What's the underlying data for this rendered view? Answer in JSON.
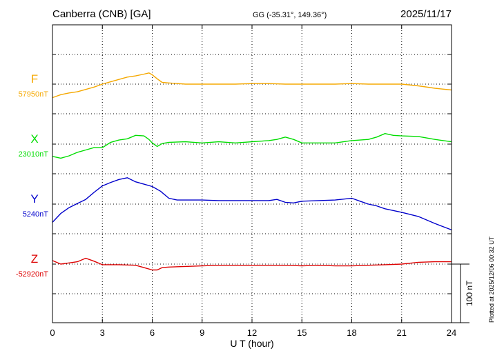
{
  "header": {
    "station": "Canberra (CNB)  [GA]",
    "coordinates": "GG (-35.31°, 149.36°)",
    "date": "2025/11/17"
  },
  "footer": {
    "plotted": "Plotted at 2025/12/06 00:32 UT"
  },
  "chart_data": {
    "type": "line",
    "title": "Canberra (CNB)  [GA]",
    "subtitle": "2025/11/17",
    "xlabel": "U T (hour)",
    "ylabel": "",
    "xlim": [
      0,
      24
    ],
    "x_ticks": [
      0,
      3,
      6,
      9,
      12,
      15,
      18,
      21,
      24
    ],
    "grid": true,
    "scale_bar": {
      "value": 100,
      "unit": "nT",
      "label": "100 nT"
    },
    "series": [
      {
        "name": "F",
        "color": "#f5a800",
        "baseline_label": "57950nT",
        "baseline": 57950,
        "points": [
          [
            0,
            57927
          ],
          [
            0.5,
            57932
          ],
          [
            1,
            57935
          ],
          [
            1.5,
            57937
          ],
          [
            2,
            57941
          ],
          [
            2.5,
            57945
          ],
          [
            3,
            57950
          ],
          [
            3.5,
            57954
          ],
          [
            4,
            57958
          ],
          [
            4.5,
            57962
          ],
          [
            5,
            57964
          ],
          [
            5.5,
            57967
          ],
          [
            5.8,
            57969
          ],
          [
            6,
            57966
          ],
          [
            6.3,
            57959
          ],
          [
            6.6,
            57953
          ],
          [
            7,
            57952
          ],
          [
            8,
            57950
          ],
          [
            9,
            57950
          ],
          [
            10,
            57950
          ],
          [
            11,
            57950
          ],
          [
            12,
            57951
          ],
          [
            13,
            57951
          ],
          [
            14,
            57950
          ],
          [
            15,
            57950
          ],
          [
            16,
            57950
          ],
          [
            17,
            57950
          ],
          [
            18,
            57951
          ],
          [
            19,
            57950
          ],
          [
            20,
            57950
          ],
          [
            21,
            57950
          ],
          [
            22,
            57947
          ],
          [
            23,
            57943
          ],
          [
            24,
            57940
          ]
        ]
      },
      {
        "name": "X",
        "color": "#00dd00",
        "baseline_label": "23010nT",
        "baseline": 23010,
        "points": [
          [
            0,
            22989
          ],
          [
            0.5,
            22986
          ],
          [
            1,
            22990
          ],
          [
            1.5,
            22996
          ],
          [
            2,
            23000
          ],
          [
            2.5,
            23004
          ],
          [
            3,
            23004
          ],
          [
            3.5,
            23013
          ],
          [
            4,
            23017
          ],
          [
            4.5,
            23019
          ],
          [
            5,
            23025
          ],
          [
            5.5,
            23024
          ],
          [
            5.8,
            23018
          ],
          [
            6,
            23012
          ],
          [
            6.3,
            23006
          ],
          [
            6.6,
            23011
          ],
          [
            7,
            23013
          ],
          [
            8,
            23014
          ],
          [
            9,
            23012
          ],
          [
            10,
            23014
          ],
          [
            11,
            23012
          ],
          [
            12,
            23014
          ],
          [
            13,
            23016
          ],
          [
            13.5,
            23018
          ],
          [
            14,
            23022
          ],
          [
            14.5,
            23018
          ],
          [
            15,
            23012
          ],
          [
            16,
            23012
          ],
          [
            17,
            23012
          ],
          [
            18,
            23016
          ],
          [
            19,
            23018
          ],
          [
            19.5,
            23022
          ],
          [
            20,
            23028
          ],
          [
            20.5,
            23025
          ],
          [
            21,
            23024
          ],
          [
            22,
            23023
          ],
          [
            23,
            23018
          ],
          [
            24,
            23014
          ]
        ]
      },
      {
        "name": "Y",
        "color": "#0000cc",
        "baseline_label": "5240nT",
        "baseline": 5240,
        "points": [
          [
            0,
            5209
          ],
          [
            0.5,
            5224
          ],
          [
            1,
            5234
          ],
          [
            1.5,
            5241
          ],
          [
            2,
            5248
          ],
          [
            2.5,
            5260
          ],
          [
            3,
            5271
          ],
          [
            3.5,
            5277
          ],
          [
            4,
            5282
          ],
          [
            4.5,
            5285
          ],
          [
            5,
            5278
          ],
          [
            5.5,
            5274
          ],
          [
            6,
            5270
          ],
          [
            6.5,
            5262
          ],
          [
            7,
            5250
          ],
          [
            7.5,
            5247
          ],
          [
            8,
            5247
          ],
          [
            9,
            5247
          ],
          [
            10,
            5246
          ],
          [
            11,
            5246
          ],
          [
            12,
            5246
          ],
          [
            13,
            5246
          ],
          [
            13.5,
            5248
          ],
          [
            14,
            5243
          ],
          [
            14.5,
            5242
          ],
          [
            15,
            5245
          ],
          [
            16,
            5246
          ],
          [
            17,
            5247
          ],
          [
            18,
            5250
          ],
          [
            18.5,
            5245
          ],
          [
            19,
            5240
          ],
          [
            19.5,
            5237
          ],
          [
            20,
            5232
          ],
          [
            21,
            5226
          ],
          [
            22,
            5219
          ],
          [
            23,
            5207
          ],
          [
            24,
            5196
          ]
        ]
      },
      {
        "name": "Z",
        "color": "#dd0000",
        "baseline_label": "-52920nT",
        "baseline": -52920,
        "points": [
          [
            0,
            -52914
          ],
          [
            0.5,
            -52920
          ],
          [
            1,
            -52918
          ],
          [
            1.5,
            -52916
          ],
          [
            2,
            -52910
          ],
          [
            2.5,
            -52915
          ],
          [
            3,
            -52921
          ],
          [
            3.5,
            -52921
          ],
          [
            4,
            -52921
          ],
          [
            5,
            -52922
          ],
          [
            5.5,
            -52926
          ],
          [
            6,
            -52930
          ],
          [
            6.3,
            -52930
          ],
          [
            6.6,
            -52926
          ],
          [
            7,
            -52925
          ],
          [
            8,
            -52924
          ],
          [
            9,
            -52923
          ],
          [
            10,
            -52922
          ],
          [
            11,
            -52922
          ],
          [
            12,
            -52922
          ],
          [
            13,
            -52922
          ],
          [
            14,
            -52922
          ],
          [
            15,
            -52923
          ],
          [
            16,
            -52922
          ],
          [
            17,
            -52923
          ],
          [
            18,
            -52923
          ],
          [
            19,
            -52922
          ],
          [
            20,
            -52921
          ],
          [
            21,
            -52920
          ],
          [
            22,
            -52917
          ],
          [
            23,
            -52916
          ],
          [
            24,
            -52916
          ]
        ]
      }
    ]
  }
}
